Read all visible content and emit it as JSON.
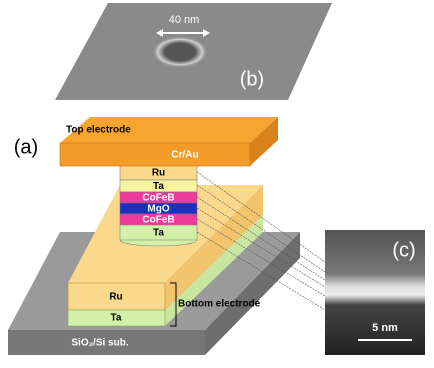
{
  "panel_b": {
    "label": "(b)",
    "scale": "40 nm"
  },
  "panel_a": {
    "label": "(a)",
    "top_electrode": {
      "title": "Top electrode",
      "layer": "Cr/Au"
    },
    "pillar_layers": [
      "Ru",
      "Ta",
      "CoFeB",
      "MgO",
      "CoFeB",
      "Ta"
    ],
    "bottom_electrode": {
      "title": "Bottom electrode",
      "layers": [
        "Ru",
        "Ta"
      ]
    },
    "substrate": "SiO₂/Si sub."
  },
  "panel_c": {
    "label": "(c)",
    "scale": "5 nm"
  }
}
